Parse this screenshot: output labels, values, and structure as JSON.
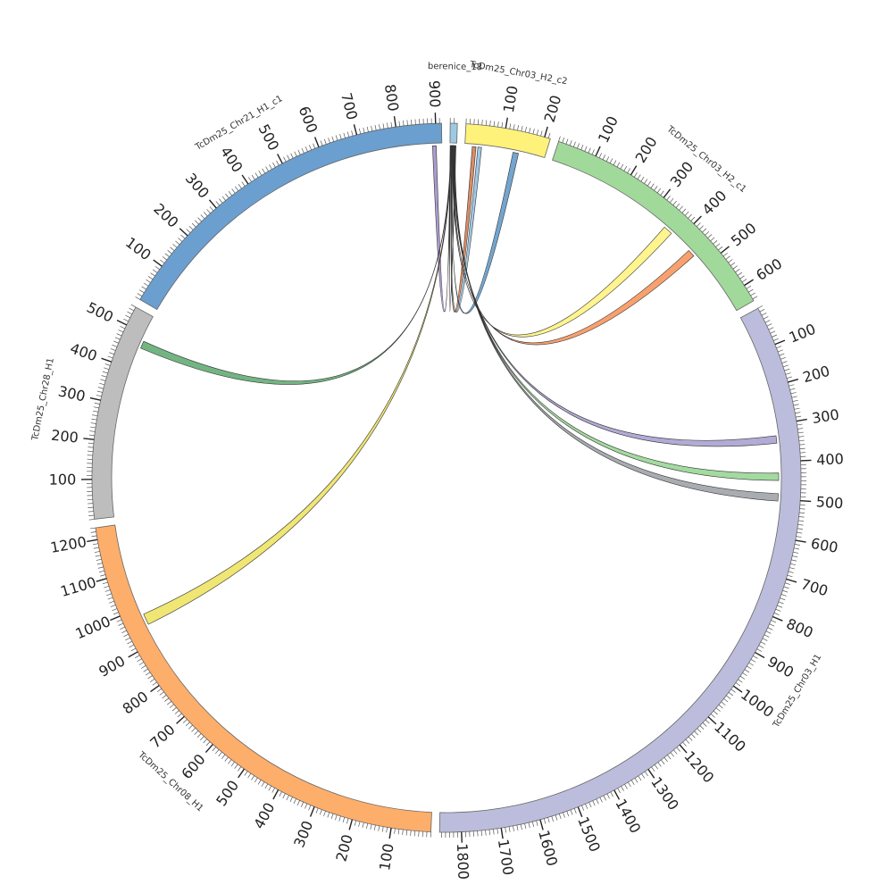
{
  "chart_data": {
    "type": "chord",
    "title": "",
    "segments": [
      {
        "name": "berenice_18",
        "label": "berenice_18",
        "length": 18,
        "color": "#9ecae1",
        "ticks": []
      },
      {
        "name": "TcDm25_Chr03_H2_c2",
        "label": "TcDm25_Chr03_H2_c2",
        "length": 215,
        "color": "#fff27a",
        "ticks": [
          "100",
          "200"
        ]
      },
      {
        "name": "TcDm25_Chr03_H2_c1",
        "label": "TcDm25_Chr03_H2_c1",
        "length": 645,
        "color": "#a1d99b",
        "ticks": [
          "100",
          "200",
          "300",
          "400",
          "500",
          "600"
        ]
      },
      {
        "name": "TcDm25_Chr03_H1",
        "label": "TcDm25_Chr03_H1",
        "length": 1855,
        "color": "#bcbddc",
        "ticks": [
          "100",
          "200",
          "300",
          "400",
          "500",
          "600",
          "700",
          "800",
          "900",
          "1000",
          "1100",
          "1200",
          "1300",
          "1400",
          "1500",
          "1600",
          "1700",
          "1800"
        ]
      },
      {
        "name": "TcDm25_Chr08_H1",
        "label": "TcDm25_Chr08_H1",
        "length": 1230,
        "color": "#fdae6b",
        "ticks": [
          "100",
          "200",
          "300",
          "400",
          "500",
          "600",
          "700",
          "800",
          "900",
          "1000",
          "1100",
          "1200"
        ]
      },
      {
        "name": "TcDm25_Chr28_H1",
        "label": "TcDm25_Chr28_H1",
        "length": 550,
        "color": "#bdbdbd",
        "ticks": [
          "100",
          "200",
          "300",
          "400",
          "500"
        ]
      },
      {
        "name": "TcDm25_Chr21_H1_c1",
        "label": "TcDm25_Chr21_H1_c1",
        "length": 915,
        "color": "#6a9fd0",
        "ticks": [
          "100",
          "200",
          "300",
          "400",
          "500",
          "600",
          "700",
          "800",
          "900"
        ]
      }
    ],
    "links": [
      {
        "source": "berenice_18",
        "source_range": [
          0.5,
          2.0
        ],
        "target": "TcDm25_Chr21_H1_c1",
        "target_range": [
          890,
          900
        ],
        "color": "#9e89c6"
      },
      {
        "source": "berenice_18",
        "source_range": [
          2.0,
          3.0
        ],
        "target": "TcDm25_Chr28_H1",
        "target_range": [
          460,
          480
        ],
        "color": "#5aa86c"
      },
      {
        "source": "berenice_18",
        "source_range": [
          3.0,
          4.5
        ],
        "target": "TcDm25_Chr08_H1",
        "target_range": [
          950,
          980
        ],
        "color": "#ede25a"
      },
      {
        "source": "berenice_18",
        "source_range": [
          4.5,
          5.5
        ],
        "target": "TcDm25_Chr03_H2_c2",
        "target_range": [
          20,
          30
        ],
        "color": "#d2784a"
      },
      {
        "source": "berenice_18",
        "source_range": [
          5.5,
          6.5
        ],
        "target": "TcDm25_Chr03_H2_c2",
        "target_range": [
          35,
          45
        ],
        "color": "#8fbfe0"
      },
      {
        "source": "berenice_18",
        "source_range": [
          6.5,
          7.5
        ],
        "target": "TcDm25_Chr03_H2_c2",
        "target_range": [
          130,
          145
        ],
        "color": "#5b95c5"
      },
      {
        "source": "berenice_18",
        "source_range": [
          7.5,
          9.0
        ],
        "target": "TcDm25_Chr03_H2_c1",
        "target_range": [
          350,
          375
        ],
        "color": "#fff27a"
      },
      {
        "source": "berenice_18",
        "source_range": [
          9.0,
          10.0
        ],
        "target": "TcDm25_Chr03_H2_c1",
        "target_range": [
          440,
          460
        ],
        "color": "#f78f55"
      },
      {
        "source": "berenice_18",
        "source_range": [
          10.0,
          11.5
        ],
        "target": "TcDm25_Chr03_H1",
        "target_range": [
          330,
          350
        ],
        "color": "#a59ccf"
      },
      {
        "source": "berenice_18",
        "source_range": [
          11.5,
          13.0
        ],
        "target": "TcDm25_Chr03_H1",
        "target_range": [
          430,
          450
        ],
        "color": "#93d48f"
      },
      {
        "source": "berenice_18",
        "source_range": [
          13.0,
          14.5
        ],
        "target": "TcDm25_Chr03_H1",
        "target_range": [
          485,
          505
        ],
        "color": "#9a9ea3"
      },
      {
        "source": "berenice_18",
        "source_range": [
          14.5,
          16.0
        ],
        "target": "berenice_18",
        "target_range": [
          1.0,
          2.5
        ],
        "color": "#55596a"
      }
    ]
  }
}
